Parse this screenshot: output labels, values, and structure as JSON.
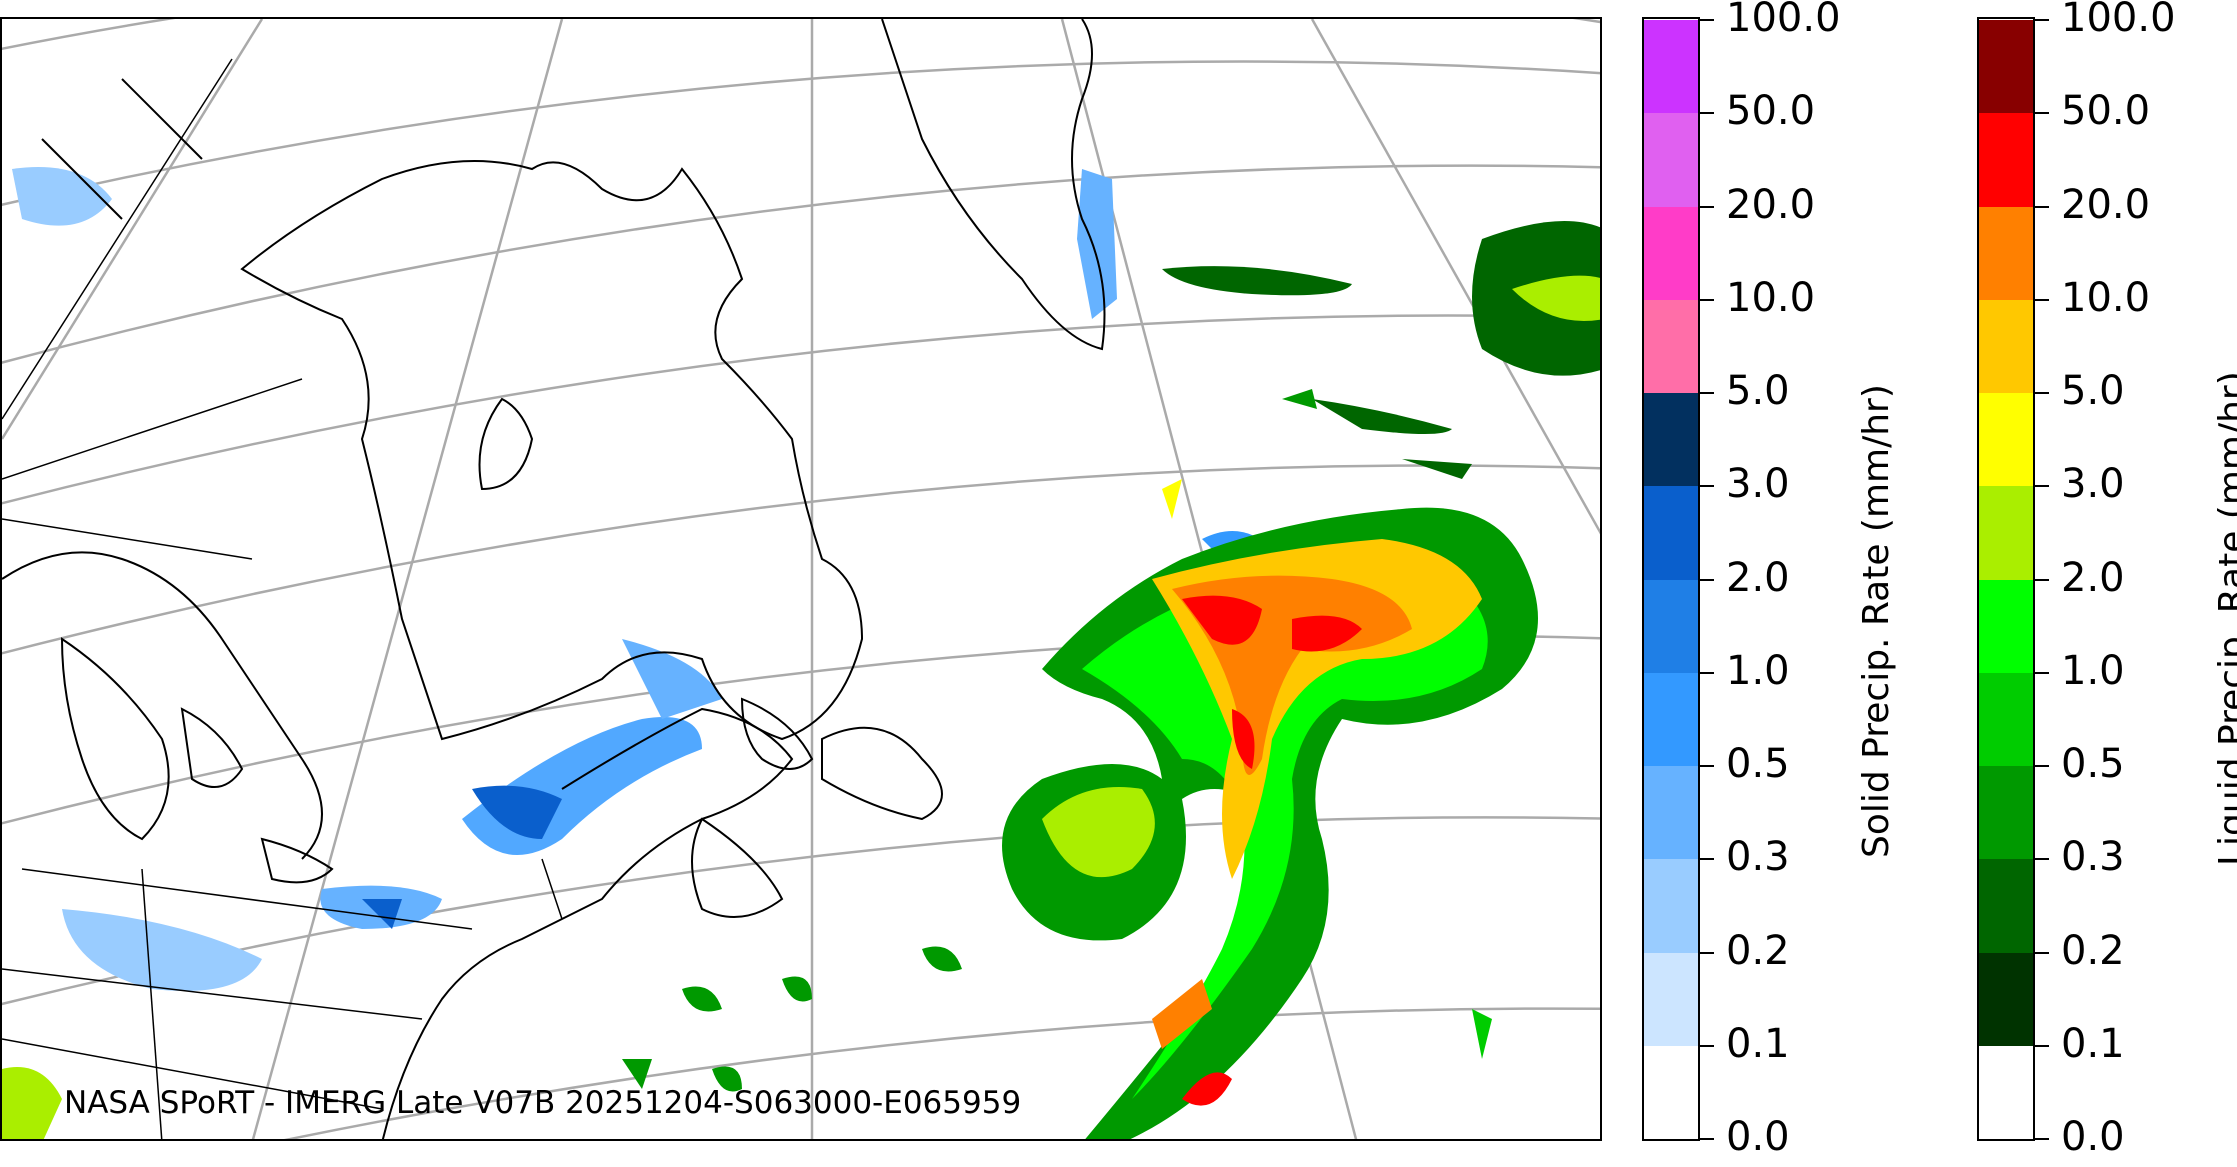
{
  "map": {
    "title_credit": "NASA SPoRT - IMERG Late V07B 20251204-S063000-E065959",
    "region": "Northeastern North America / Northwest Atlantic",
    "projection_style": "conic with gray graticule",
    "colors": {
      "coastline": "#000000",
      "graticule": "#aaaaaa",
      "frame": "#000000"
    }
  },
  "solid_colorbar": {
    "label": "Solid Precip. Rate (mm/hr)",
    "ticks": [
      "0.0",
      "0.1",
      "0.2",
      "0.3",
      "0.5",
      "1.0",
      "2.0",
      "3.0",
      "5.0",
      "10.0",
      "20.0",
      "50.0",
      "100.0"
    ],
    "colors": [
      "#ffffff",
      "#cce5ff",
      "#99ccff",
      "#66b2ff",
      "#3399ff",
      "#1f7fe6",
      "#0a5fcc",
      "#02305f",
      "#ff6ea8",
      "#ff3cc8",
      "#e060f0",
      "#cc33ff",
      "#9400d3"
    ]
  },
  "liquid_colorbar": {
    "label": "Liquid Precip. Rate (mm/hr)",
    "ticks": [
      "0.0",
      "0.1",
      "0.2",
      "0.3",
      "0.5",
      "1.0",
      "2.0",
      "3.0",
      "5.0",
      "10.0",
      "20.0",
      "50.0",
      "100.0"
    ],
    "colors": [
      "#ffffff",
      "#003300",
      "#006600",
      "#009900",
      "#00cc00",
      "#00ff00",
      "#aaee00",
      "#ffff00",
      "#ffc800",
      "#ff8000",
      "#ff0000",
      "#880000",
      "#440000"
    ]
  }
}
